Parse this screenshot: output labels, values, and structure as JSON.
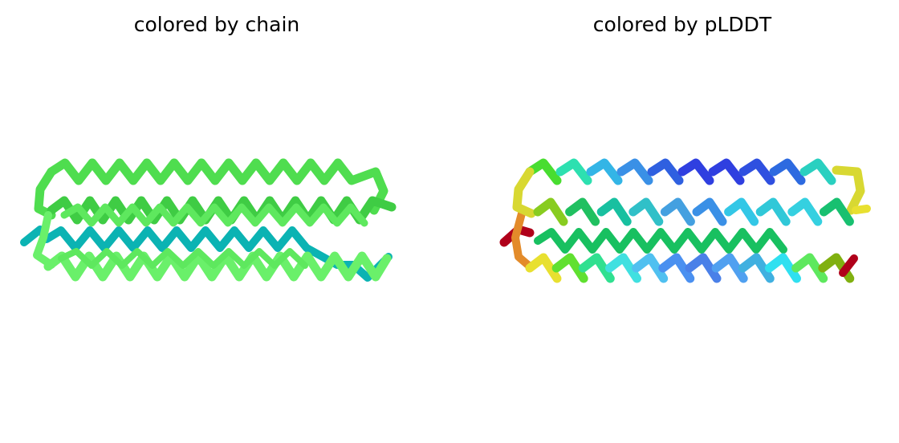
{
  "panels": [
    {
      "title": "colored by chain",
      "coloring": "chain",
      "palette": {
        "chain_a": "#0bb3b3",
        "helix_top": "#4fdd4f",
        "helix_mid": "#3fcc44",
        "helix_front": "#6af06a"
      }
    },
    {
      "title": "colored by pLDDT",
      "coloring": "pLDDT",
      "palette": {
        "very_high": "#2f3fe0",
        "high": "#33c7e6",
        "mid": "#18c060",
        "medium_low": "#d8d832",
        "low": "#e38b2a",
        "very_low": "#b0001a"
      }
    }
  ]
}
